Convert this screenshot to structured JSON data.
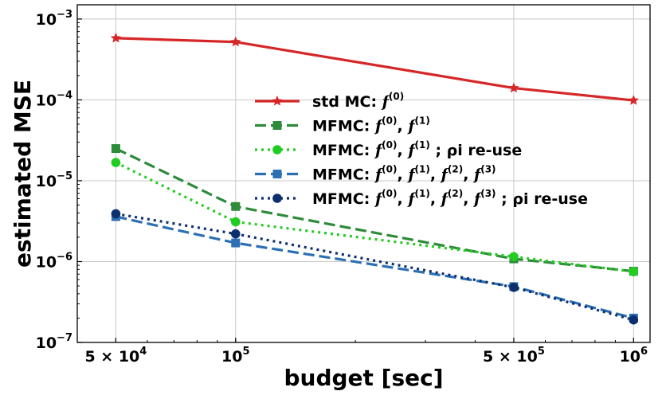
{
  "chart_data": {
    "type": "line",
    "xscale": "log",
    "yscale": "log",
    "xlabel": "budget [sec]",
    "ylabel": "estimated MSE",
    "xlim": [
      40000,
      1100000
    ],
    "ylim": [
      1e-07,
      0.0015
    ],
    "grid": true,
    "legend_position": "center-right",
    "x_ticks": [
      {
        "value": 50000,
        "mantissa": "5 × 10",
        "exp": "4"
      },
      {
        "value": 100000,
        "mantissa": "10",
        "exp": "5"
      },
      {
        "value": 500000,
        "mantissa": "5 × 10",
        "exp": "5"
      },
      {
        "value": 1000000,
        "mantissa": "10",
        "exp": "6"
      }
    ],
    "y_ticks": [
      {
        "value": 1e-07,
        "mantissa": "10",
        "exp": "−7"
      },
      {
        "value": 1e-06,
        "mantissa": "10",
        "exp": "−6"
      },
      {
        "value": 1e-05,
        "mantissa": "10",
        "exp": "−5"
      },
      {
        "value": 0.0001,
        "mantissa": "10",
        "exp": "−4"
      },
      {
        "value": 0.001,
        "mantissa": "10",
        "exp": "−3"
      }
    ],
    "x": [
      50000,
      100000,
      500000,
      1000000
    ],
    "series": [
      {
        "name": "std MC: f(0)",
        "prefix": "std MC: ",
        "fns": [
          "(0)"
        ],
        "suffix": "",
        "values": [
          0.00058,
          0.00052,
          0.00014,
          9.85e-05
        ],
        "color": "#d62728",
        "dash": "",
        "marker": "star"
      },
      {
        "name": "MFMC: f(0), f(1)",
        "prefix": "MFMC: ",
        "fns": [
          "(0)",
          "(1)"
        ],
        "suffix": "",
        "values": [
          2.5e-05,
          4.8e-06,
          1.08e-06,
          7.6e-07
        ],
        "color": "#2e8b3a",
        "dash": "14,6",
        "marker": "square"
      },
      {
        "name": "MFMC: f(0), f(1) ; ρi re-use",
        "prefix": "MFMC: ",
        "fns": [
          "(0)",
          "(1)"
        ],
        "suffix": " ; ρi re-use",
        "values": [
          1.68e-05,
          3.1e-06,
          1.15e-06,
          7.5e-07
        ],
        "color": "#22cc22",
        "dash": "3,5",
        "marker": "circle"
      },
      {
        "name": "MFMC: f(0), f(1), f(2), f(3)",
        "prefix": "MFMC: ",
        "fns": [
          "(0)",
          "(1)",
          "(2)",
          "(3)"
        ],
        "suffix": "",
        "values": [
          3.6e-06,
          1.7e-06,
          4.9e-07,
          2e-07
        ],
        "color": "#2c6fb3",
        "dash": "14,6",
        "marker": "square"
      },
      {
        "name": "MFMC: f(0), f(1), f(2), f(3) ; ρi re-use",
        "prefix": "MFMC: ",
        "fns": [
          "(0)",
          "(1)",
          "(2)",
          "(3)"
        ],
        "suffix": " ; ρi re-use",
        "values": [
          3.9e-06,
          2.2e-06,
          4.8e-07,
          1.9e-07
        ],
        "color": "#0d2f6e",
        "dash": "3,5",
        "marker": "circle"
      }
    ]
  }
}
